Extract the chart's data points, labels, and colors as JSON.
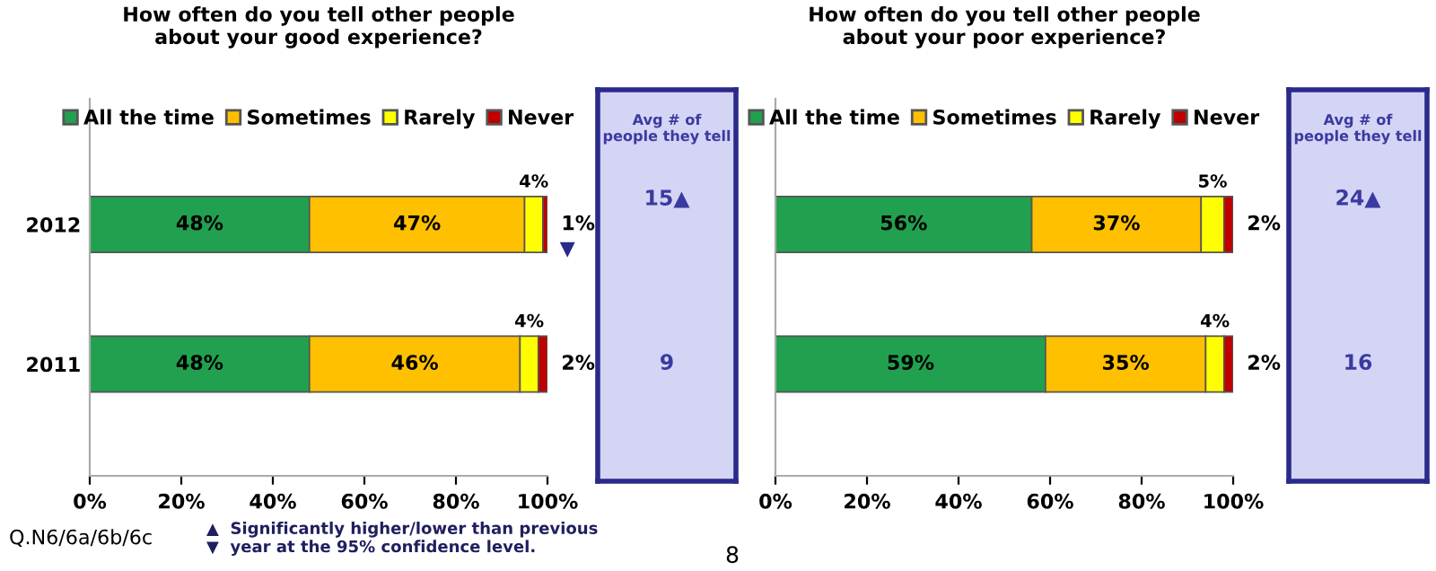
{
  "chart_data": [
    {
      "type": "bar",
      "orientation": "horizontal",
      "stacked": true,
      "title": "How often do you tell other people\nabout your good experience?",
      "categories": [
        "2012",
        "2011"
      ],
      "series": [
        {
          "name": "All the time",
          "color": "#21a04f",
          "values": [
            48,
            48
          ],
          "value_labels": [
            "48%",
            "48%"
          ]
        },
        {
          "name": "Sometimes",
          "color": "#ffc000",
          "values": [
            47,
            46
          ],
          "value_labels": [
            "47%",
            "46%"
          ]
        },
        {
          "name": "Rarely",
          "color": "#ffff00",
          "values": [
            4,
            4
          ],
          "value_labels": [
            "4%",
            "4%"
          ]
        },
        {
          "name": "Never",
          "color": "#c00000",
          "values": [
            1,
            2
          ],
          "value_labels": [
            "1%",
            "2%"
          ]
        }
      ],
      "xlim": [
        0,
        100
      ],
      "xticks": [
        {
          "value": 0,
          "label": "0%"
        },
        {
          "value": 20,
          "label": "20%"
        },
        {
          "value": 40,
          "label": "40%"
        },
        {
          "value": 60,
          "label": "60%"
        },
        {
          "value": 80,
          "label": "80%"
        },
        {
          "value": 100,
          "label": "100%"
        }
      ],
      "legend": "top",
      "grid": false,
      "annotations": [
        "Q.N6/6a/6b/6c",
        "▲  Significantly higher/lower than previous\n▼  year at the 95% confidence level.",
        "8",
        {
          "text": "▼",
          "x": 100,
          "y": "2012"
        }
      ]
    },
    {
      "type": "other",
      "title": "Avg # of\npeople they tell",
      "annotations": [
        "15▲",
        "9"
      ]
    },
    {
      "type": "bar",
      "orientation": "horizontal",
      "stacked": true,
      "title": "How often do you tell other people\nabout your poor experience?",
      "categories": [
        null,
        null
      ],
      "series": [
        {
          "name": "All the time",
          "color": "#21a04f",
          "values": [
            56,
            59
          ],
          "value_labels": [
            "56%",
            "59%"
          ]
        },
        {
          "name": "Sometimes",
          "color": "#ffc000",
          "values": [
            37,
            35
          ],
          "value_labels": [
            "37%",
            "35%"
          ]
        },
        {
          "name": "Rarely",
          "color": "#ffff00",
          "values": [
            5,
            4
          ],
          "value_labels": [
            "5%",
            "4%"
          ]
        },
        {
          "name": "Never",
          "color": "#c00000",
          "values": [
            2,
            2
          ],
          "value_labels": [
            "2%",
            "2%"
          ]
        }
      ],
      "xlim": [
        0,
        100
      ],
      "xticks": [
        {
          "value": 0,
          "label": "0%"
        },
        {
          "value": 20,
          "label": "20%"
        },
        {
          "value": 40,
          "label": "40%"
        },
        {
          "value": 60,
          "label": "60%"
        },
        {
          "value": 80,
          "label": "80%"
        },
        {
          "value": 100,
          "label": "100%"
        }
      ],
      "legend": "top",
      "grid": false
    },
    {
      "type": "other",
      "title": "Avg # of\npeople they tell",
      "annotations": [
        "24▲",
        "16"
      ]
    }
  ]
}
